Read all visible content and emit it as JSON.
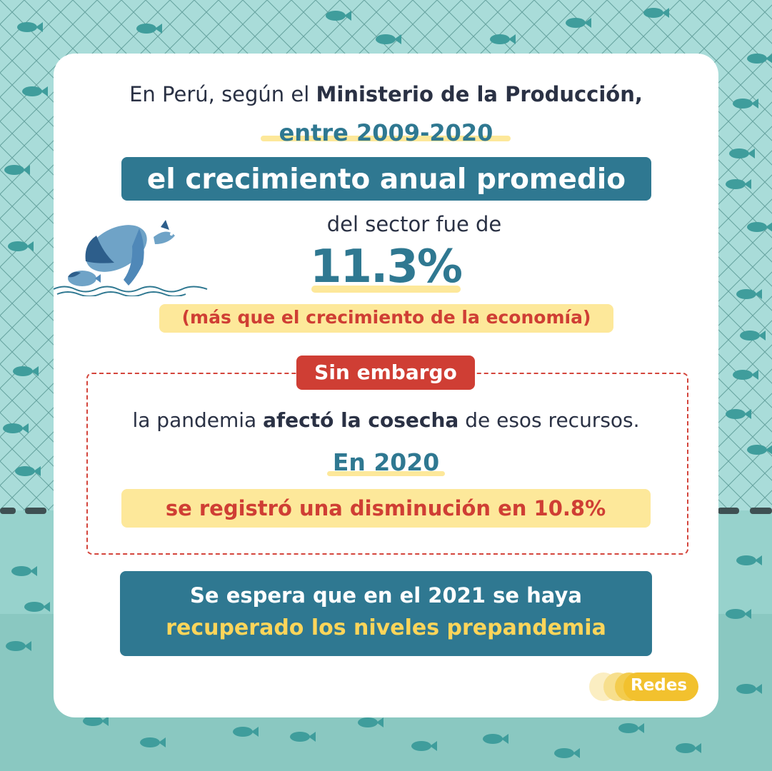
{
  "header": {
    "line1_prefix": "En Perú, según el ",
    "line1_bold": "Ministerio de la Producción,",
    "years": "entre 2009-2020",
    "growth_label": "el crecimiento anual promedio",
    "sector_line": "del sector fue de",
    "growth_value": "11.3%",
    "comparison": "(más que el crecimiento de la economía)"
  },
  "however_box": {
    "tag": "Sin embargo",
    "text_prefix": "la pandemia ",
    "text_bold": "afectó la cosecha",
    "text_suffix": " de esos recursos.",
    "year": "En 2020",
    "decrease": "se registró una disminución en 10.8%"
  },
  "outlook": {
    "line1": "Se espera que en el 2021 se haya",
    "line2": "recuperado los niveles prepandemia"
  },
  "brand": {
    "label": "Redes"
  },
  "colors": {
    "background": "#a9dcd9",
    "accent_blue": "#2f7891",
    "highlight_yellow": "#fde89a",
    "accent_red": "#cf3e34",
    "brand_yellow": "#f2c12e"
  },
  "icons": {
    "decoration": "jumping-fish-illustration",
    "background": "fishing-net-pattern"
  }
}
